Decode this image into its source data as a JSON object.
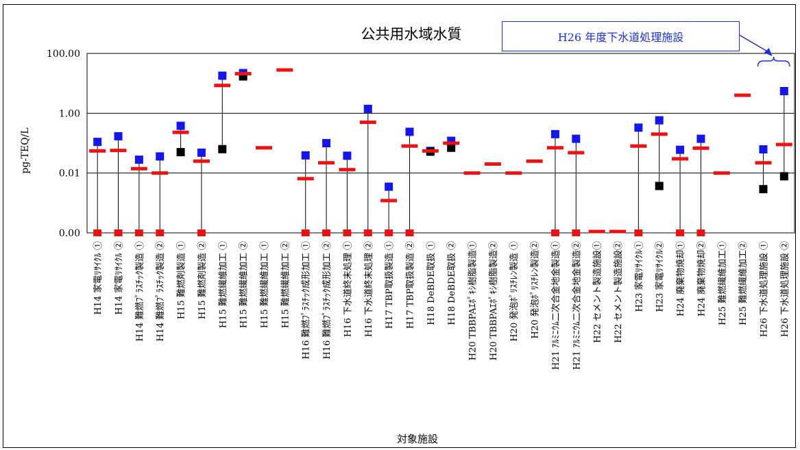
{
  "chart_data": {
    "type": "scatter",
    "title": "公共用水域水質",
    "xlabel": "対象施設",
    "ylabel": "pg-TEQ/L",
    "yscale": "log",
    "ytick_values": [
      0.0001,
      0.01,
      1,
      100
    ],
    "ytick_labels": [
      "0.00",
      "0.01",
      "1.00",
      "100.00"
    ],
    "ylim": [
      0.0001,
      100
    ],
    "grid": "horizontal",
    "colors": {
      "max": "#1515ee",
      "min": "#000000",
      "mean": "#ee1111",
      "callout": "#1a2fd6"
    },
    "categories": [
      "H14 家電ﾘｻｲｸﾙ ①",
      "H14 家電ﾘｻｲｸﾙ ②",
      "H14 難燃ﾌﾟﾗｽﾁｯｸ製造 ①",
      "H14 難燃ﾌﾟﾗｽﾁｯｸ製造 ②",
      "H15 難燃剤製造 ①",
      "H15 難燃剤製造 ②",
      "H15 難燃繊維加工 ①",
      "H15 難燃繊維加工 ②",
      "H15 難燃繊維加工 ①",
      "H15 難燃繊維加工 ②",
      "H16 難燃ﾌﾟﾗｽﾁｯｸ成形加工 ①",
      "H16 難燃ﾌﾟﾗｽﾁｯｸ成形加工 ②",
      "H16 下水道終末処理 ①",
      "H16 下水道終末処理 ②",
      "H17 TBP取扱製造 ①",
      "H17 TBP取扱製造 ②",
      "H18 DeBDE取扱 ①",
      "H18 DeBDE取扱 ②",
      "H20 TBBPAｴﾎﾟｷｼ樹脂製造①",
      "H20 TBBPAｴﾎﾟｷｼ樹脂製造②",
      "H20 発泡ﾎﾟﾘｽﾁﾚﾝ製造 ①",
      "H20 発泡ﾎﾟﾘｽﾁﾚﾝ製造②",
      "H21 ｱﾙﾐﾆｳﾑ二次合金地金製造①",
      "H21 ｱﾙﾐﾆｳﾑ二次合金地金製造②",
      "H22 セメント製造施設①",
      "H22 セメント製造施設②",
      "H23 家電ﾘｻｲｸﾙ①",
      "H23 家電ﾘｻｲｸﾙ②",
      "H24 廃棄物焼却①",
      "H24 廃棄物焼却②",
      "H25 難燃繊維加工①",
      "H25 難燃繊維加工②",
      "H26 下水道処理施設 ①",
      "H26 下水道処理施設 ②"
    ],
    "max": [
      0.11,
      0.17,
      0.028,
      0.036,
      0.38,
      0.048,
      18,
      22,
      null,
      null,
      0.039,
      0.1,
      0.038,
      1.4,
      0.0035,
      0.24,
      0.055,
      0.12,
      null,
      null,
      null,
      null,
      0.2,
      0.14,
      null,
      null,
      0.33,
      0.58,
      0.06,
      0.14,
      null,
      null,
      0.062,
      5.5
    ],
    "min": [
      null,
      null,
      null,
      null,
      0.05,
      null,
      0.063,
      17,
      null,
      null,
      null,
      null,
      null,
      null,
      null,
      null,
      0.052,
      0.07,
      null,
      null,
      null,
      null,
      null,
      null,
      null,
      null,
      null,
      0.0037,
      null,
      null,
      null,
      null,
      0.0029,
      0.0078
    ],
    "mean": [
      0.055,
      0.057,
      0.014,
      0.01,
      0.23,
      0.025,
      8.5,
      21,
      0.07,
      28,
      0.0065,
      0.022,
      0.013,
      0.5,
      0.0012,
      0.08,
      0.055,
      0.1,
      0.01,
      0.02,
      0.01,
      0.025,
      0.07,
      0.048,
      0.0001,
      0.0001,
      0.08,
      0.2,
      0.03,
      0.068,
      0.01,
      4,
      0.022,
      0.09
    ],
    "zero_points": [
      true,
      true,
      true,
      true,
      false,
      true,
      false,
      false,
      false,
      false,
      true,
      true,
      true,
      true,
      true,
      true,
      false,
      false,
      false,
      false,
      false,
      false,
      true,
      true,
      false,
      false,
      true,
      false,
      true,
      true,
      false,
      false,
      false,
      false
    ],
    "annotation": {
      "text": "H26 年度下水道処理施設",
      "brace_targets": [
        32,
        33
      ]
    }
  }
}
